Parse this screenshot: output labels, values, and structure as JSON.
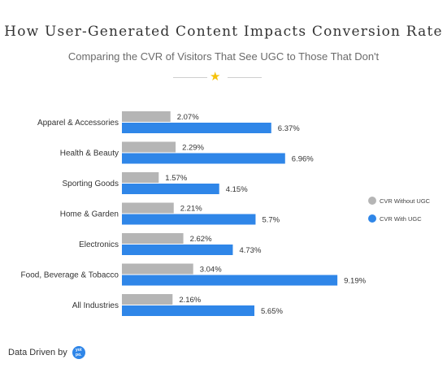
{
  "header": {
    "title": "How User-Generated Content Impacts Conversion Rate",
    "subtitle": "Comparing the CVR of Visitors That See UGC to Those That Don't"
  },
  "colors": {
    "without_ugc": "#b5b5b5",
    "with_ugc": "#2f86e8",
    "star": "#f5c20a",
    "logo": "#2f86e8"
  },
  "icons": {
    "divider_icon": "star-icon",
    "brand_icon": "yotpo-logo"
  },
  "footer": {
    "text": "Data Driven by",
    "logo_text": "yot\npo."
  },
  "chart_data": {
    "type": "bar",
    "orientation": "horizontal",
    "categories": [
      "Apparel & Accessories",
      "Health & Beauty",
      "Sporting Goods",
      "Home & Garden",
      "Electronics",
      "Food, Beverage & Tobacco",
      "All Industries"
    ],
    "series": [
      {
        "name": "CVR Without UGC",
        "values": [
          2.07,
          2.29,
          1.57,
          2.21,
          2.62,
          3.04,
          2.16
        ],
        "labels": [
          "2.07%",
          "2.29%",
          "1.57%",
          "2.21%",
          "2.62%",
          "3.04%",
          "2.16%"
        ]
      },
      {
        "name": "CVR With UGC",
        "values": [
          6.37,
          6.96,
          4.15,
          5.7,
          4.73,
          9.19,
          5.65
        ],
        "labels": [
          "6.37%",
          "6.96%",
          "4.15%",
          "5.7%",
          "4.73%",
          "9.19%",
          "5.65%"
        ]
      }
    ],
    "xlim": [
      0,
      10
    ],
    "grid": false,
    "legend_position": "right"
  }
}
